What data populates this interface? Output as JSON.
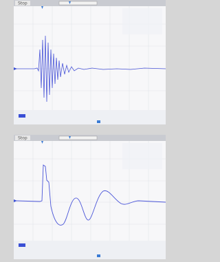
{
  "screens": [
    {
      "status": "Stop"
    },
    {
      "status": "Stop"
    }
  ]
}
